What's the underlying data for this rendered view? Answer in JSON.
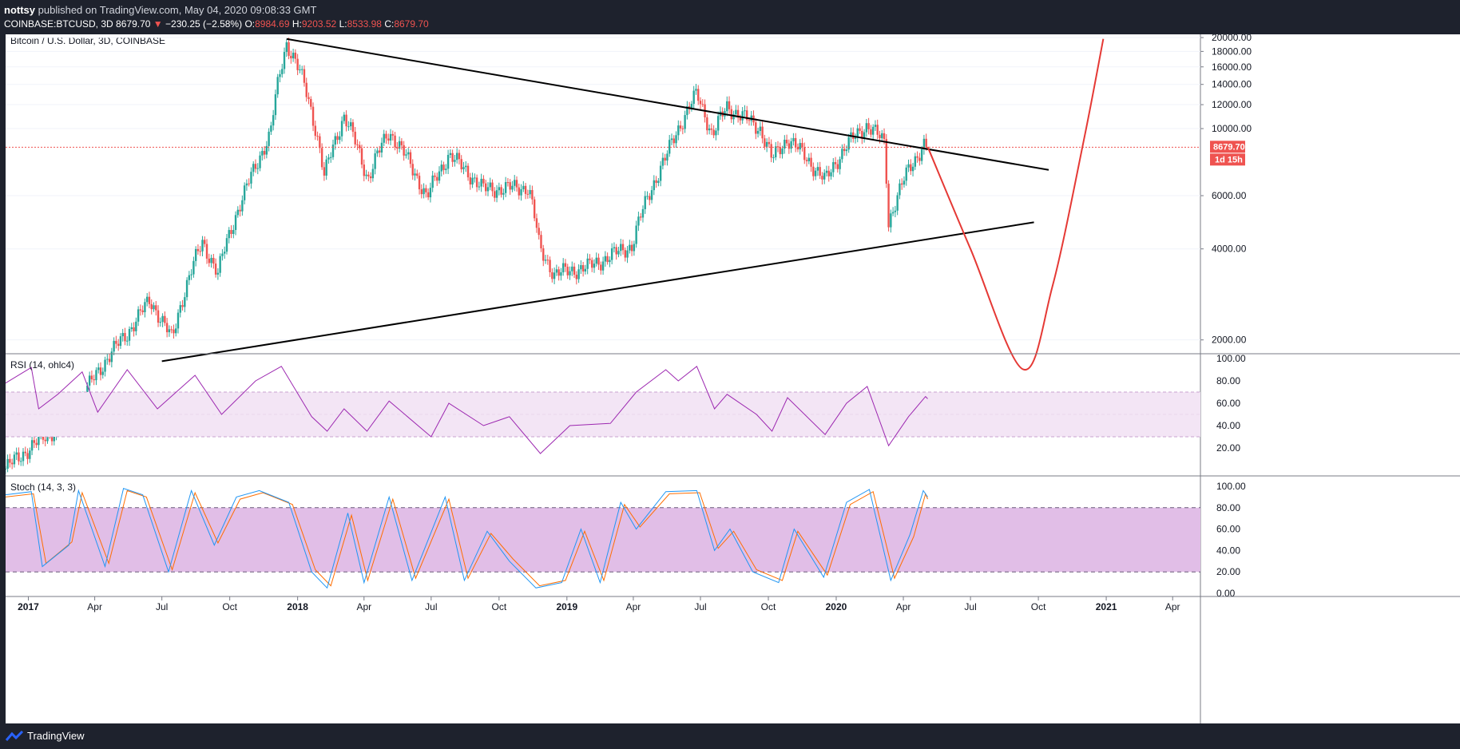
{
  "header": {
    "author": "nottsy",
    "published_text": "published on TradingView.com, May 04, 2020 09:08:33 GMT",
    "symbol": "COINBASE:BTCUSD, 3D",
    "last": "8679.70",
    "change": "−230.25 (−2.58%)",
    "o_label": "O:",
    "o": "8984.69",
    "h_label": "H:",
    "h": "9203.52",
    "l_label": "L:",
    "l": "8533.98",
    "c_label": "C:",
    "c": "8679.70"
  },
  "main_pane": {
    "label": "Bitcoin / U.S. Dollar, 3D, COINBASE",
    "y_ticks": [
      "20000.00",
      "18000.00",
      "16000.00",
      "14000.00",
      "12000.00",
      "10000.00",
      "6000.00",
      "4000.00",
      "2000.00"
    ],
    "last_price_tag": "8679.70",
    "countdown_tag": "1d 15h"
  },
  "rsi_pane": {
    "label": "RSI (14, ohlc4)",
    "y_ticks": [
      "100.00",
      "80.00",
      "60.00",
      "40.00",
      "20.00"
    ]
  },
  "stoch_pane": {
    "label": "Stoch (14, 3, 3)",
    "y_ticks": [
      "100.00",
      "80.00",
      "60.00",
      "40.00",
      "20.00",
      "0.00"
    ]
  },
  "x_axis": {
    "ticks": [
      "2017",
      "Apr",
      "Jul",
      "Oct",
      "2018",
      "Apr",
      "Jul",
      "Oct",
      "2019",
      "Apr",
      "Jul",
      "Oct",
      "2020",
      "Apr",
      "Jul",
      "Oct",
      "2021",
      "Apr"
    ]
  },
  "footer": {
    "brand": "TradingView"
  },
  "colors": {
    "up": "#26a69a",
    "down": "#ef5350",
    "rsi": "#9c27b0",
    "rsi_band": "#f3e5f5",
    "stoch_k": "#2196f3",
    "stoch_d": "#ff6d00",
    "stoch_band": "#e1bee7",
    "projection": "#e53935"
  },
  "chart_data": {
    "type": "candlestick",
    "interval": "3D",
    "scale": "log",
    "ylim": [
      1800,
      20500
    ],
    "price_path": [
      {
        "date": "2016-12-01",
        "close": 750
      },
      {
        "date": "2017-03-01",
        "close": 1100
      },
      {
        "date": "2017-05-15",
        "close": 2100
      },
      {
        "date": "2017-06-15",
        "close": 2700
      },
      {
        "date": "2017-07-15",
        "close": 2000
      },
      {
        "date": "2017-08-25",
        "close": 4200
      },
      {
        "date": "2017-09-15",
        "close": 3300
      },
      {
        "date": "2017-10-20",
        "close": 6000
      },
      {
        "date": "2017-11-25",
        "close": 9500
      },
      {
        "date": "2017-12-17",
        "close": 19200
      },
      {
        "date": "2018-01-10",
        "close": 14000
      },
      {
        "date": "2018-02-06",
        "close": 6900
      },
      {
        "date": "2018-03-05",
        "close": 11000
      },
      {
        "date": "2018-04-06",
        "close": 6800
      },
      {
        "date": "2018-05-05",
        "close": 9800
      },
      {
        "date": "2018-06-25",
        "close": 5900
      },
      {
        "date": "2018-07-25",
        "close": 8200
      },
      {
        "date": "2018-09-10",
        "close": 6300
      },
      {
        "date": "2018-11-10",
        "close": 6400
      },
      {
        "date": "2018-11-25",
        "close": 4000
      },
      {
        "date": "2018-12-15",
        "close": 3300
      },
      {
        "date": "2019-02-01",
        "close": 3500
      },
      {
        "date": "2019-03-30",
        "close": 4100
      },
      {
        "date": "2019-05-15",
        "close": 8000
      },
      {
        "date": "2019-06-26",
        "close": 13000
      },
      {
        "date": "2019-07-17",
        "close": 9500
      },
      {
        "date": "2019-08-06",
        "close": 11800
      },
      {
        "date": "2019-09-20",
        "close": 10000
      },
      {
        "date": "2019-10-06",
        "close": 7900
      },
      {
        "date": "2019-10-27",
        "close": 9300
      },
      {
        "date": "2019-12-17",
        "close": 6700
      },
      {
        "date": "2020-01-15",
        "close": 8800
      },
      {
        "date": "2020-02-12",
        "close": 10300
      },
      {
        "date": "2020-03-06",
        "close": 9000
      },
      {
        "date": "2020-03-12",
        "close": 4900
      },
      {
        "date": "2020-04-08",
        "close": 7300
      },
      {
        "date": "2020-05-01",
        "close": 9000
      },
      {
        "date": "2020-05-04",
        "close": 8679.7
      }
    ],
    "trendlines": [
      {
        "name": "upper",
        "from": {
          "date": "2017-12-17",
          "price": 19800
        },
        "to": {
          "date": "2020-10-15",
          "price": 7300
        }
      },
      {
        "name": "lower",
        "from": {
          "date": "2017-07-01",
          "price": 1700
        },
        "to": {
          "date": "2020-09-25",
          "price": 4900
        }
      }
    ],
    "projection": [
      {
        "date": "2020-05-04",
        "price": 8700
      },
      {
        "date": "2020-07-01",
        "price": 4000
      },
      {
        "date": "2020-09-10",
        "price": 1600
      },
      {
        "date": "2020-10-20",
        "price": 3000
      },
      {
        "date": "2020-12-01",
        "price": 9000
      },
      {
        "date": "2020-12-28",
        "price": 19800
      }
    ],
    "rsi": {
      "name": "RSI (14, ohlc4)",
      "bands": [
        70,
        30
      ],
      "ylim": [
        0,
        100
      ],
      "path": [
        {
          "date": "2016-12-01",
          "value": 78
        },
        {
          "date": "2017-01-05",
          "value": 92
        },
        {
          "date": "2017-01-15",
          "value": 55
        },
        {
          "date": "2017-02-10",
          "value": 68
        },
        {
          "date": "2017-03-15",
          "value": 88
        },
        {
          "date": "2017-04-05",
          "value": 52
        },
        {
          "date": "2017-05-15",
          "value": 90
        },
        {
          "date": "2017-06-25",
          "value": 55
        },
        {
          "date": "2017-08-15",
          "value": 85
        },
        {
          "date": "2017-09-20",
          "value": 50
        },
        {
          "date": "2017-11-05",
          "value": 80
        },
        {
          "date": "2017-12-10",
          "value": 93
        },
        {
          "date": "2018-01-20",
          "value": 48
        },
        {
          "date": "2018-02-10",
          "value": 35
        },
        {
          "date": "2018-03-05",
          "value": 55
        },
        {
          "date": "2018-04-05",
          "value": 35
        },
        {
          "date": "2018-05-05",
          "value": 62
        },
        {
          "date": "2018-07-01",
          "value": 30
        },
        {
          "date": "2018-07-25",
          "value": 60
        },
        {
          "date": "2018-09-10",
          "value": 40
        },
        {
          "date": "2018-10-15",
          "value": 48
        },
        {
          "date": "2018-11-26",
          "value": 15
        },
        {
          "date": "2019-01-05",
          "value": 40
        },
        {
          "date": "2019-03-01",
          "value": 42
        },
        {
          "date": "2019-04-05",
          "value": 70
        },
        {
          "date": "2019-05-15",
          "value": 90
        },
        {
          "date": "2019-06-01",
          "value": 80
        },
        {
          "date": "2019-06-26",
          "value": 93
        },
        {
          "date": "2019-07-20",
          "value": 55
        },
        {
          "date": "2019-08-06",
          "value": 68
        },
        {
          "date": "2019-09-15",
          "value": 50
        },
        {
          "date": "2019-10-06",
          "value": 35
        },
        {
          "date": "2019-10-27",
          "value": 65
        },
        {
          "date": "2019-12-17",
          "value": 32
        },
        {
          "date": "2020-01-15",
          "value": 60
        },
        {
          "date": "2020-02-12",
          "value": 75
        },
        {
          "date": "2020-03-12",
          "value": 22
        },
        {
          "date": "2020-04-08",
          "value": 48
        },
        {
          "date": "2020-05-01",
          "value": 66
        },
        {
          "date": "2020-05-04",
          "value": 64
        }
      ]
    },
    "stoch": {
      "name": "Stoch (14, 3, 3)",
      "bands": [
        80,
        20
      ],
      "ylim": [
        0,
        100
      ],
      "series_k": [
        {
          "date": "2016-12-01",
          "value": 92
        },
        {
          "date": "2017-01-05",
          "value": 95
        },
        {
          "date": "2017-01-20",
          "value": 25
        },
        {
          "date": "2017-02-25",
          "value": 45
        },
        {
          "date": "2017-03-10",
          "value": 96
        },
        {
          "date": "2017-04-15",
          "value": 25
        },
        {
          "date": "2017-05-10",
          "value": 98
        },
        {
          "date": "2017-06-05",
          "value": 92
        },
        {
          "date": "2017-07-10",
          "value": 20
        },
        {
          "date": "2017-08-10",
          "value": 96
        },
        {
          "date": "2017-09-10",
          "value": 45
        },
        {
          "date": "2017-10-10",
          "value": 90
        },
        {
          "date": "2017-11-10",
          "value": 96
        },
        {
          "date": "2017-12-20",
          "value": 85
        },
        {
          "date": "2018-01-20",
          "value": 20
        },
        {
          "date": "2018-02-10",
          "value": 5
        },
        {
          "date": "2018-03-10",
          "value": 75
        },
        {
          "date": "2018-04-01",
          "value": 10
        },
        {
          "date": "2018-05-05",
          "value": 90
        },
        {
          "date": "2018-06-05",
          "value": 12
        },
        {
          "date": "2018-07-20",
          "value": 90
        },
        {
          "date": "2018-08-15",
          "value": 12
        },
        {
          "date": "2018-09-15",
          "value": 58
        },
        {
          "date": "2018-10-15",
          "value": 30
        },
        {
          "date": "2018-11-20",
          "value": 5
        },
        {
          "date": "2018-12-25",
          "value": 10
        },
        {
          "date": "2019-01-20",
          "value": 60
        },
        {
          "date": "2019-02-15",
          "value": 10
        },
        {
          "date": "2019-03-15",
          "value": 85
        },
        {
          "date": "2019-04-05",
          "value": 60
        },
        {
          "date": "2019-05-15",
          "value": 95
        },
        {
          "date": "2019-06-26",
          "value": 96
        },
        {
          "date": "2019-07-20",
          "value": 40
        },
        {
          "date": "2019-08-10",
          "value": 60
        },
        {
          "date": "2019-09-10",
          "value": 20
        },
        {
          "date": "2019-10-15",
          "value": 10
        },
        {
          "date": "2019-11-05",
          "value": 60
        },
        {
          "date": "2019-12-15",
          "value": 15
        },
        {
          "date": "2020-01-15",
          "value": 85
        },
        {
          "date": "2020-02-15",
          "value": 97
        },
        {
          "date": "2020-03-15",
          "value": 12
        },
        {
          "date": "2020-04-10",
          "value": 55
        },
        {
          "date": "2020-04-28",
          "value": 96
        },
        {
          "date": "2020-05-04",
          "value": 90
        }
      ],
      "series_d": [
        {
          "date": "2016-12-01",
          "value": 90
        },
        {
          "date": "2017-01-08",
          "value": 93
        },
        {
          "date": "2017-01-25",
          "value": 28
        },
        {
          "date": "2017-03-01",
          "value": 48
        },
        {
          "date": "2017-03-15",
          "value": 94
        },
        {
          "date": "2017-04-20",
          "value": 28
        },
        {
          "date": "2017-05-15",
          "value": 96
        },
        {
          "date": "2017-06-10",
          "value": 90
        },
        {
          "date": "2017-07-15",
          "value": 22
        },
        {
          "date": "2017-08-15",
          "value": 94
        },
        {
          "date": "2017-09-15",
          "value": 47
        },
        {
          "date": "2017-10-15",
          "value": 88
        },
        {
          "date": "2017-11-15",
          "value": 94
        },
        {
          "date": "2017-12-25",
          "value": 83
        },
        {
          "date": "2018-01-25",
          "value": 22
        },
        {
          "date": "2018-02-15",
          "value": 7
        },
        {
          "date": "2018-03-15",
          "value": 73
        },
        {
          "date": "2018-04-06",
          "value": 12
        },
        {
          "date": "2018-05-10",
          "value": 88
        },
        {
          "date": "2018-06-10",
          "value": 14
        },
        {
          "date": "2018-07-25",
          "value": 88
        },
        {
          "date": "2018-08-20",
          "value": 14
        },
        {
          "date": "2018-09-20",
          "value": 56
        },
        {
          "date": "2018-10-20",
          "value": 32
        },
        {
          "date": "2018-11-25",
          "value": 7
        },
        {
          "date": "2018-12-30",
          "value": 12
        },
        {
          "date": "2019-01-25",
          "value": 58
        },
        {
          "date": "2019-02-20",
          "value": 12
        },
        {
          "date": "2019-03-20",
          "value": 83
        },
        {
          "date": "2019-04-10",
          "value": 62
        },
        {
          "date": "2019-05-20",
          "value": 93
        },
        {
          "date": "2019-06-30",
          "value": 94
        },
        {
          "date": "2019-07-25",
          "value": 42
        },
        {
          "date": "2019-08-15",
          "value": 58
        },
        {
          "date": "2019-09-15",
          "value": 22
        },
        {
          "date": "2019-10-20",
          "value": 12
        },
        {
          "date": "2019-11-10",
          "value": 58
        },
        {
          "date": "2019-12-20",
          "value": 17
        },
        {
          "date": "2020-01-20",
          "value": 83
        },
        {
          "date": "2020-02-20",
          "value": 95
        },
        {
          "date": "2020-03-20",
          "value": 14
        },
        {
          "date": "2020-04-15",
          "value": 53
        },
        {
          "date": "2020-05-01",
          "value": 93
        },
        {
          "date": "2020-05-04",
          "value": 88
        }
      ]
    }
  }
}
